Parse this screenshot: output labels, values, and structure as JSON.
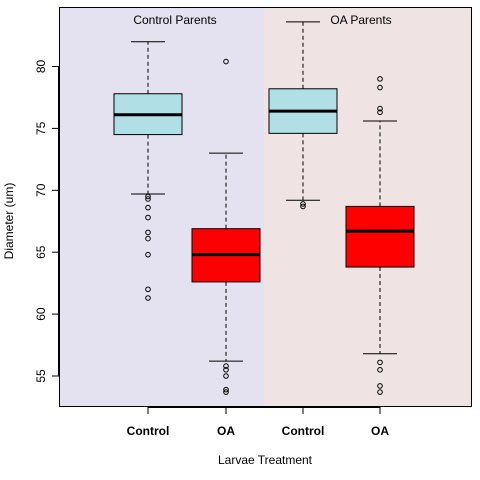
{
  "chart_data": {
    "type": "box",
    "xlabel": "Larvae Treatment",
    "ylabel": "Diameter (um)",
    "ylim": [
      52.5,
      84.8
    ],
    "yticks": [
      55,
      60,
      65,
      70,
      75,
      80
    ],
    "groups": [
      {
        "label": "Control Parents",
        "background": "#e4e2f1"
      },
      {
        "label": "OA Parents",
        "background": "#efe3e3"
      }
    ],
    "boxes": [
      {
        "group": "Control Parents",
        "category": "Control",
        "color": "#b0e0e6",
        "whisker_low": 69.7,
        "q1": 74.5,
        "median": 76.1,
        "q3": 77.8,
        "whisker_high": 82.0,
        "outliers": [
          69.5,
          69.3,
          68.6,
          67.8,
          66.6,
          66.1,
          64.8,
          62.0,
          61.3
        ]
      },
      {
        "group": "Control Parents",
        "category": "OA",
        "color": "#ff0000",
        "whisker_low": 56.2,
        "q1": 62.6,
        "median": 64.8,
        "q3": 66.9,
        "whisker_high": 73.0,
        "outliers": [
          80.4,
          55.8,
          55.5,
          55.0,
          53.9,
          53.7
        ]
      },
      {
        "group": "OA Parents",
        "category": "Control",
        "color": "#b0e0e6",
        "whisker_low": 69.2,
        "q1": 74.6,
        "median": 76.4,
        "q3": 78.2,
        "whisker_high": 83.6,
        "outliers": [
          68.9,
          68.7
        ]
      },
      {
        "group": "OA Parents",
        "category": "OA",
        "color": "#ff0000",
        "whisker_low": 56.8,
        "q1": 63.8,
        "median": 66.7,
        "q3": 68.7,
        "whisker_high": 75.6,
        "outliers": [
          79.0,
          78.3,
          76.6,
          76.3,
          56.1,
          55.5,
          54.2,
          53.7
        ]
      }
    ]
  }
}
